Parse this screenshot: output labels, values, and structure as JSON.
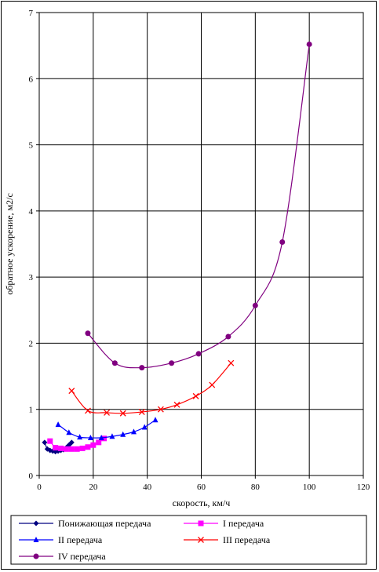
{
  "chart_data": {
    "type": "line",
    "title": "",
    "xlabel": "скорость, км/ч",
    "ylabel": "обратное ускорение, м2/с",
    "xlim": [
      0,
      120
    ],
    "ylim": [
      0,
      7
    ],
    "x_ticks": [
      "0",
      "20",
      "40",
      "60",
      "80",
      "100",
      "120"
    ],
    "y_ticks": [
      "0",
      "1",
      "2",
      "3",
      "4",
      "5",
      "6",
      "7"
    ],
    "grid": true,
    "legend_position": "bottom",
    "series": [
      {
        "name": "Понижающая передача",
        "color": "#000080",
        "marker": "diamond",
        "points": [
          [
            2,
            0.5
          ],
          [
            3,
            0.4
          ],
          [
            4,
            0.38
          ],
          [
            5,
            0.37
          ],
          [
            6,
            0.36
          ],
          [
            7,
            0.37
          ],
          [
            8,
            0.38
          ],
          [
            9,
            0.39
          ],
          [
            10,
            0.42
          ],
          [
            11,
            0.46
          ],
          [
            12,
            0.5
          ]
        ]
      },
      {
        "name": "I передача",
        "color": "#ff00ff",
        "marker": "square",
        "points": [
          [
            4,
            0.52
          ],
          [
            6,
            0.42
          ],
          [
            8,
            0.41
          ],
          [
            10,
            0.4
          ],
          [
            12,
            0.4
          ],
          [
            14,
            0.4
          ],
          [
            16,
            0.41
          ],
          [
            18,
            0.43
          ],
          [
            20,
            0.46
          ],
          [
            22,
            0.5
          ],
          [
            24,
            0.56
          ]
        ]
      },
      {
        "name": "II передача",
        "color": "#0000ff",
        "marker": "triangle",
        "points": [
          [
            7,
            0.77
          ],
          [
            11,
            0.65
          ],
          [
            15,
            0.58
          ],
          [
            19,
            0.57
          ],
          [
            23,
            0.57
          ],
          [
            27,
            0.59
          ],
          [
            31,
            0.62
          ],
          [
            35,
            0.66
          ],
          [
            39,
            0.73
          ],
          [
            43,
            0.84
          ]
        ]
      },
      {
        "name": "III передача",
        "color": "#ff0000",
        "marker": "x",
        "points": [
          [
            12,
            1.28
          ],
          [
            18,
            0.98
          ],
          [
            25,
            0.95
          ],
          [
            31,
            0.94
          ],
          [
            38,
            0.96
          ],
          [
            45,
            1.0
          ],
          [
            51,
            1.07
          ],
          [
            58,
            1.2
          ],
          [
            64,
            1.37
          ],
          [
            71,
            1.7
          ]
        ]
      },
      {
        "name": "IV передача",
        "color": "#800080",
        "marker": "circle",
        "points": [
          [
            18,
            2.15
          ],
          [
            28,
            1.7
          ],
          [
            38,
            1.63
          ],
          [
            49,
            1.7
          ],
          [
            59,
            1.84
          ],
          [
            70,
            2.1
          ],
          [
            80,
            2.57
          ],
          [
            90,
            3.53
          ],
          [
            100,
            6.52
          ]
        ]
      }
    ]
  }
}
